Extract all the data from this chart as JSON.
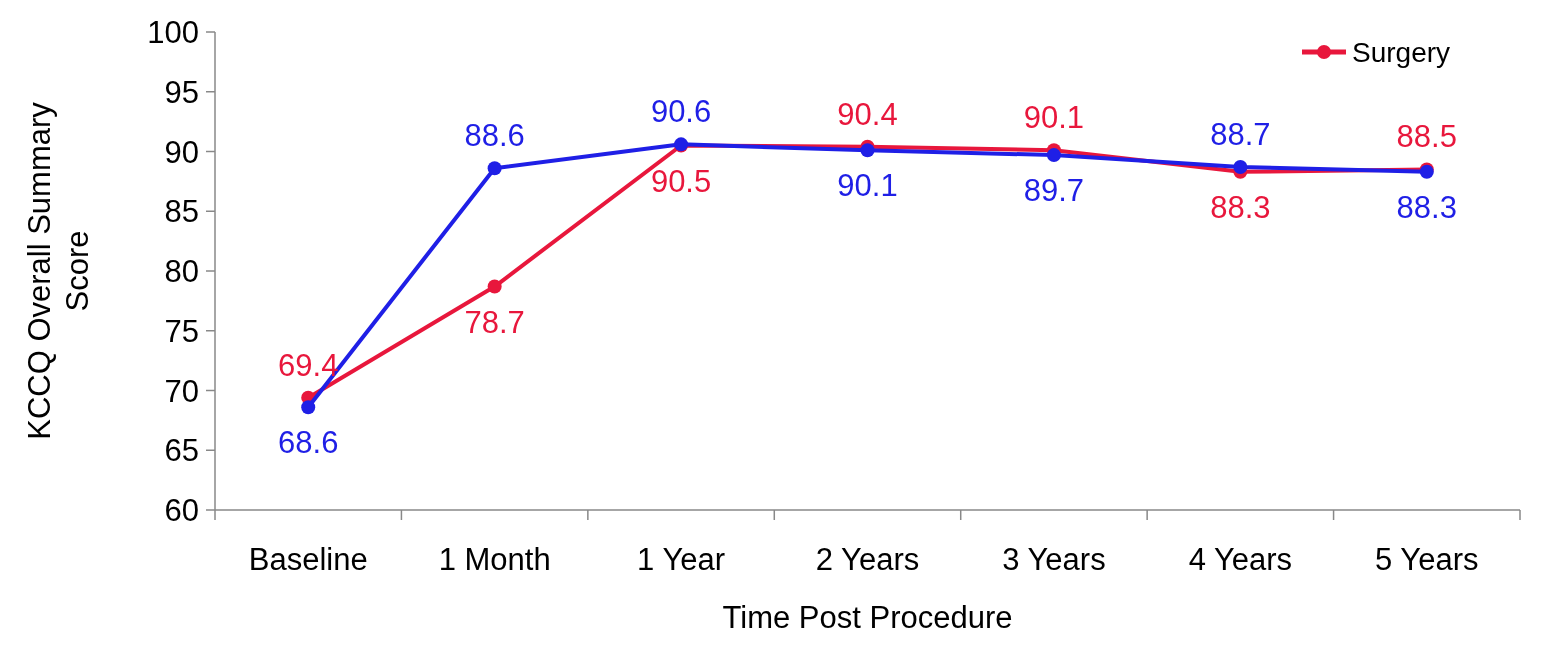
{
  "chart_data": {
    "type": "line",
    "xlabel": "Time Post Procedure",
    "ylabel": "KCCQ Overall Summary Score",
    "categories": [
      "Baseline",
      "1 Month",
      "1 Year",
      "2 Years",
      "3 Years",
      "4 Years",
      "5 Years"
    ],
    "series": [
      {
        "color": "#1f1fe6",
        "values": [
          68.6,
          88.6,
          90.6,
          90.1,
          89.7,
          88.7,
          88.3
        ]
      },
      {
        "name": "Surgery",
        "color": "#e8173c",
        "values": [
          69.4,
          78.7,
          90.5,
          90.4,
          90.1,
          88.3,
          88.5
        ]
      }
    ],
    "ylim": [
      60,
      100
    ],
    "yticks": [
      60,
      65,
      70,
      75,
      80,
      85,
      90,
      95,
      100
    ],
    "data_labels": true,
    "legend": "top right",
    "marker": "circle",
    "grid": false
  }
}
